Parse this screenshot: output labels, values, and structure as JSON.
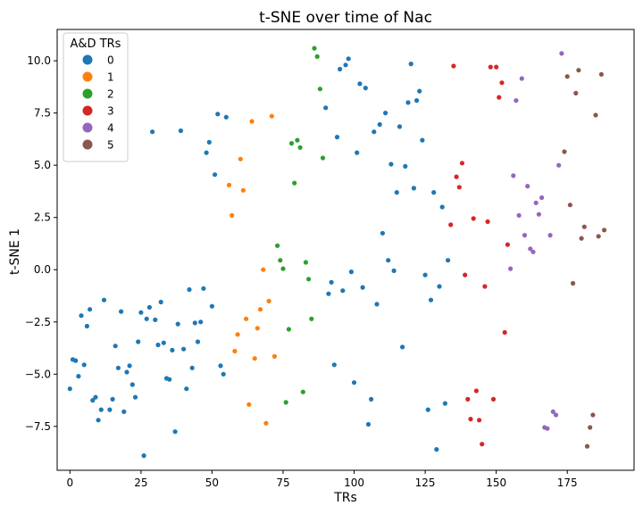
{
  "chart_data": {
    "type": "scatter",
    "title": "t-SNE over time of Nac",
    "xlabel": "TRs",
    "ylabel": "t-SNE 1",
    "xlim": [
      -4.5,
      198.5
    ],
    "ylim": [
      -9.6,
      11.5
    ],
    "xticks": [
      0,
      25,
      50,
      75,
      100,
      125,
      150,
      175
    ],
    "yticks": [
      -7.5,
      -5.0,
      -2.5,
      0.0,
      2.5,
      5.0,
      7.5,
      10.0
    ],
    "xtick_labels": [
      "0",
      "25",
      "50",
      "75",
      "100",
      "125",
      "150",
      "175"
    ],
    "ytick_labels": [
      "−7.5",
      "−5.0",
      "−2.5",
      "0.0",
      "2.5",
      "5.0",
      "7.5",
      "10.0"
    ],
    "grid": false,
    "legend": {
      "title": "A&D TRs",
      "placement": "top-left"
    },
    "series": [
      {
        "name": "0",
        "color": "#1f77b4",
        "points": [
          [
            0,
            -5.7
          ],
          [
            1,
            -4.3
          ],
          [
            2,
            -4.35
          ],
          [
            3,
            -5.1
          ],
          [
            4,
            -2.2
          ],
          [
            5,
            -4.55
          ],
          [
            6,
            -2.7
          ],
          [
            7,
            -1.9
          ],
          [
            8,
            -6.25
          ],
          [
            9,
            -6.1
          ],
          [
            10,
            -7.2
          ],
          [
            11,
            -6.7
          ],
          [
            12,
            -1.45
          ],
          [
            14,
            -6.7
          ],
          [
            15,
            -6.2
          ],
          [
            16,
            -3.65
          ],
          [
            17,
            -4.7
          ],
          [
            18,
            -2.0
          ],
          [
            19,
            -6.8
          ],
          [
            20,
            -4.9
          ],
          [
            21,
            -4.6
          ],
          [
            22,
            -5.5
          ],
          [
            23,
            -6.1
          ],
          [
            24,
            -3.45
          ],
          [
            25,
            -2.05
          ],
          [
            26,
            -8.9
          ],
          [
            27,
            -2.35
          ],
          [
            28,
            -1.8
          ],
          [
            29,
            6.6
          ],
          [
            30,
            -2.4
          ],
          [
            31,
            -3.6
          ],
          [
            32,
            -1.55
          ],
          [
            33,
            -3.5
          ],
          [
            34,
            -5.2
          ],
          [
            35,
            -5.25
          ],
          [
            36,
            -3.85
          ],
          [
            37,
            -7.75
          ],
          [
            38,
            -2.6
          ],
          [
            39,
            6.65
          ],
          [
            40,
            -3.8
          ],
          [
            41,
            -5.7
          ],
          [
            42,
            -0.95
          ],
          [
            43,
            -4.7
          ],
          [
            44,
            -2.55
          ],
          [
            45,
            -3.45
          ],
          [
            46,
            -2.5
          ],
          [
            47,
            -0.9
          ],
          [
            48,
            5.6
          ],
          [
            49,
            6.1
          ],
          [
            50,
            -1.75
          ],
          [
            51,
            4.55
          ],
          [
            52,
            7.45
          ],
          [
            53,
            -4.6
          ],
          [
            54,
            -5.0
          ],
          [
            55,
            7.3
          ],
          [
            90,
            7.75
          ],
          [
            91,
            -1.15
          ],
          [
            92,
            -0.6
          ],
          [
            93,
            -4.55
          ],
          [
            94,
            6.35
          ],
          [
            95,
            9.6
          ],
          [
            96,
            -1.0
          ],
          [
            97,
            9.8
          ],
          [
            98,
            10.1
          ],
          [
            99,
            -0.1
          ],
          [
            100,
            -5.4
          ],
          [
            101,
            5.6
          ],
          [
            102,
            8.9
          ],
          [
            103,
            -0.85
          ],
          [
            104,
            8.7
          ],
          [
            105,
            -7.4
          ],
          [
            106,
            -6.2
          ],
          [
            107,
            6.6
          ],
          [
            108,
            -1.65
          ],
          [
            109,
            6.95
          ],
          [
            110,
            1.75
          ],
          [
            111,
            7.5
          ],
          [
            112,
            0.45
          ],
          [
            113,
            5.05
          ],
          [
            114,
            -0.05
          ],
          [
            115,
            3.7
          ],
          [
            116,
            6.85
          ],
          [
            117,
            -3.7
          ],
          [
            118,
            4.95
          ],
          [
            119,
            8.0
          ],
          [
            120,
            9.85
          ],
          [
            121,
            3.9
          ],
          [
            122,
            8.1
          ],
          [
            123,
            8.55
          ],
          [
            124,
            6.2
          ],
          [
            125,
            -0.25
          ],
          [
            126,
            -6.7
          ],
          [
            127,
            -1.45
          ],
          [
            128,
            3.7
          ],
          [
            129,
            -8.6
          ],
          [
            130,
            -0.8
          ],
          [
            131,
            3.0
          ],
          [
            132,
            -6.4
          ],
          [
            133,
            0.45
          ]
        ]
      },
      {
        "name": "1",
        "color": "#ff7f0e",
        "points": [
          [
            56,
            4.05
          ],
          [
            57,
            2.6
          ],
          [
            58,
            -3.9
          ],
          [
            59,
            -3.1
          ],
          [
            60,
            5.3
          ],
          [
            61,
            3.8
          ],
          [
            62,
            -2.35
          ],
          [
            63,
            -6.45
          ],
          [
            64,
            7.1
          ],
          [
            65,
            -4.25
          ],
          [
            66,
            -2.8
          ],
          [
            67,
            -1.9
          ],
          [
            68,
            0.0
          ],
          [
            69,
            -7.35
          ],
          [
            70,
            -1.5
          ],
          [
            71,
            7.35
          ],
          [
            72,
            -4.15
          ]
        ]
      },
      {
        "name": "2",
        "color": "#2ca02c",
        "points": [
          [
            73,
            1.15
          ],
          [
            74,
            0.45
          ],
          [
            75,
            0.05
          ],
          [
            76,
            -6.35
          ],
          [
            77,
            -2.85
          ],
          [
            78,
            6.05
          ],
          [
            79,
            4.15
          ],
          [
            80,
            6.2
          ],
          [
            81,
            5.85
          ],
          [
            82,
            -5.85
          ],
          [
            83,
            0.35
          ],
          [
            84,
            -0.45
          ],
          [
            85,
            -2.35
          ],
          [
            86,
            10.6
          ],
          [
            87,
            10.2
          ],
          [
            88,
            8.65
          ],
          [
            89,
            5.35
          ]
        ]
      },
      {
        "name": "3",
        "color": "#d62728",
        "points": [
          [
            134,
            2.15
          ],
          [
            135,
            9.75
          ],
          [
            136,
            4.45
          ],
          [
            137,
            3.95
          ],
          [
            138,
            5.1
          ],
          [
            139,
            -0.25
          ],
          [
            140,
            -6.2
          ],
          [
            141,
            -7.15
          ],
          [
            142,
            2.45
          ],
          [
            143,
            -5.8
          ],
          [
            144,
            -7.2
          ],
          [
            145,
            -8.35
          ],
          [
            146,
            -0.8
          ],
          [
            147,
            2.3
          ],
          [
            148,
            9.7
          ],
          [
            149,
            -6.2
          ],
          [
            150,
            9.7
          ],
          [
            151,
            8.25
          ],
          [
            152,
            8.95
          ],
          [
            153,
            -3.0
          ],
          [
            154,
            1.2
          ]
        ]
      },
      {
        "name": "4",
        "color": "#9467bd",
        "points": [
          [
            155,
            0.05
          ],
          [
            156,
            4.5
          ],
          [
            157,
            8.1
          ],
          [
            158,
            2.6
          ],
          [
            159,
            9.15
          ],
          [
            160,
            1.65
          ],
          [
            161,
            4.0
          ],
          [
            162,
            1.0
          ],
          [
            163,
            0.85
          ],
          [
            164,
            3.2
          ],
          [
            165,
            2.65
          ],
          [
            166,
            3.45
          ],
          [
            167,
            -7.55
          ],
          [
            168,
            -7.6
          ],
          [
            169,
            1.65
          ],
          [
            170,
            -6.8
          ],
          [
            171,
            -6.95
          ],
          [
            172,
            5.0
          ],
          [
            173,
            10.35
          ]
        ]
      },
      {
        "name": "5",
        "color": "#8c564b",
        "points": [
          [
            174,
            5.65
          ],
          [
            175,
            9.25
          ],
          [
            176,
            3.1
          ],
          [
            177,
            -0.65
          ],
          [
            178,
            8.45
          ],
          [
            179,
            9.55
          ],
          [
            180,
            1.5
          ],
          [
            181,
            2.05
          ],
          [
            182,
            -8.45
          ],
          [
            183,
            -7.55
          ],
          [
            184,
            -6.95
          ],
          [
            185,
            7.4
          ],
          [
            186,
            1.6
          ],
          [
            187,
            9.35
          ],
          [
            188,
            1.9
          ]
        ]
      }
    ]
  }
}
